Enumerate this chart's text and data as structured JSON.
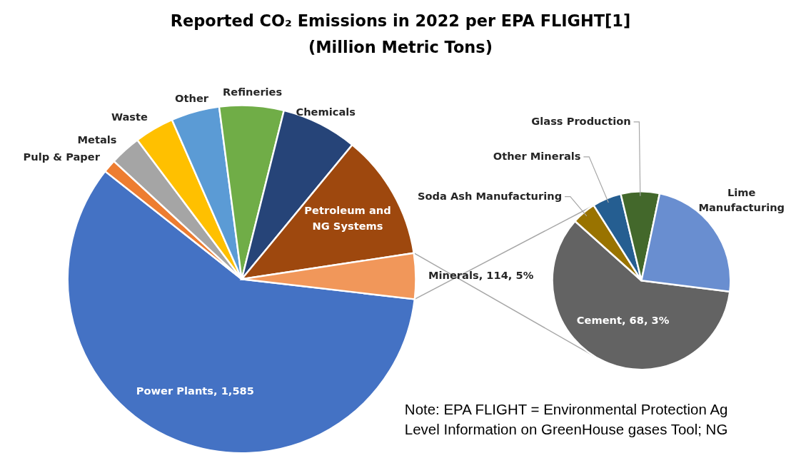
{
  "chart_data": [
    {
      "type": "pie",
      "title": "Reported CO₂ Emissions in 2022 per EPA FLIGHT[1]",
      "subtitle": "(Million Metric Tons)",
      "categories": [
        "Power Plants",
        "Pulp & Paper",
        "Metals",
        "Waste",
        "Other",
        "Refineries",
        "Chemicals",
        "Petroleum and NG Systems",
        "Minerals"
      ],
      "values": [
        1585,
        33,
        78,
        99,
        121,
        161,
        190,
        314,
        114
      ],
      "colors": [
        "#4472c4",
        "#ed7d31",
        "#a5a5a5",
        "#ffc000",
        "#5b9bd5",
        "#70ad47",
        "#264478",
        "#9e480e",
        "#f1975a"
      ],
      "value_labels": [
        "1,585",
        null,
        null,
        null,
        null,
        null,
        null,
        null,
        "114, 5%"
      ],
      "annotations": [
        "Note: EPA FLIGHT = Environmental Protection Ag",
        "Level Information on GreenHouse gases Tool; NG"
      ]
    },
    {
      "type": "pie",
      "categories": [
        "Cement",
        "Soda Ash Manufacturing",
        "Other Minerals",
        "Glass Production",
        "Lime Manufacturing"
      ],
      "values": [
        68,
        5,
        6,
        8,
        27
      ],
      "colors": [
        "#636363",
        "#997300",
        "#255e91",
        "#43682b",
        "#698ed0"
      ],
      "value_labels": [
        "68, 3%",
        null,
        null,
        null,
        null
      ]
    }
  ]
}
